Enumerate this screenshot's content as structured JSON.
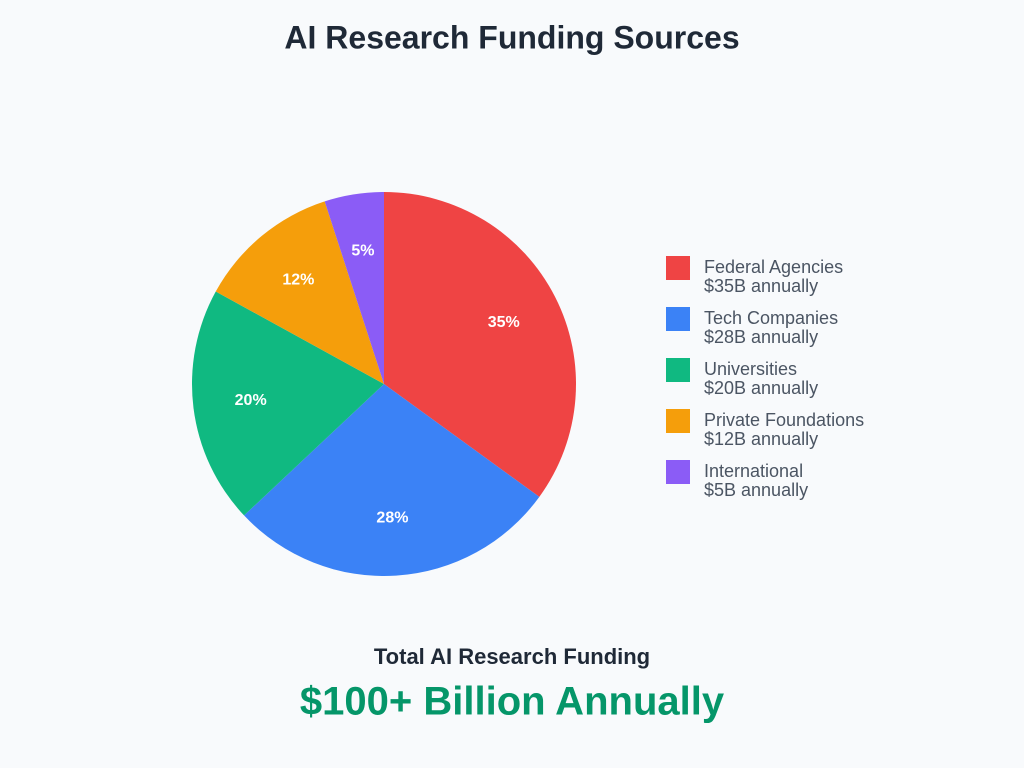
{
  "chart_data": {
    "type": "pie",
    "title": "AI Research Funding Sources",
    "categories": [
      "Federal Agencies",
      "Tech Companies",
      "Universities",
      "Private Foundations",
      "International"
    ],
    "values": [
      35,
      28,
      20,
      12,
      5
    ],
    "value_labels": [
      "35%",
      "28%",
      "20%",
      "12%",
      "5%"
    ],
    "legend_details": [
      "$35B annually",
      "$28B annually",
      "$20B annually",
      "$12B annually",
      "$5B annually"
    ],
    "colors": [
      "#ef4444",
      "#3b82f6",
      "#10b981",
      "#f59e0b",
      "#8b5cf6"
    ],
    "legend": "right"
  },
  "footer": {
    "caption": "Total AI Research Funding",
    "total": "$100+ Billion Annually"
  }
}
